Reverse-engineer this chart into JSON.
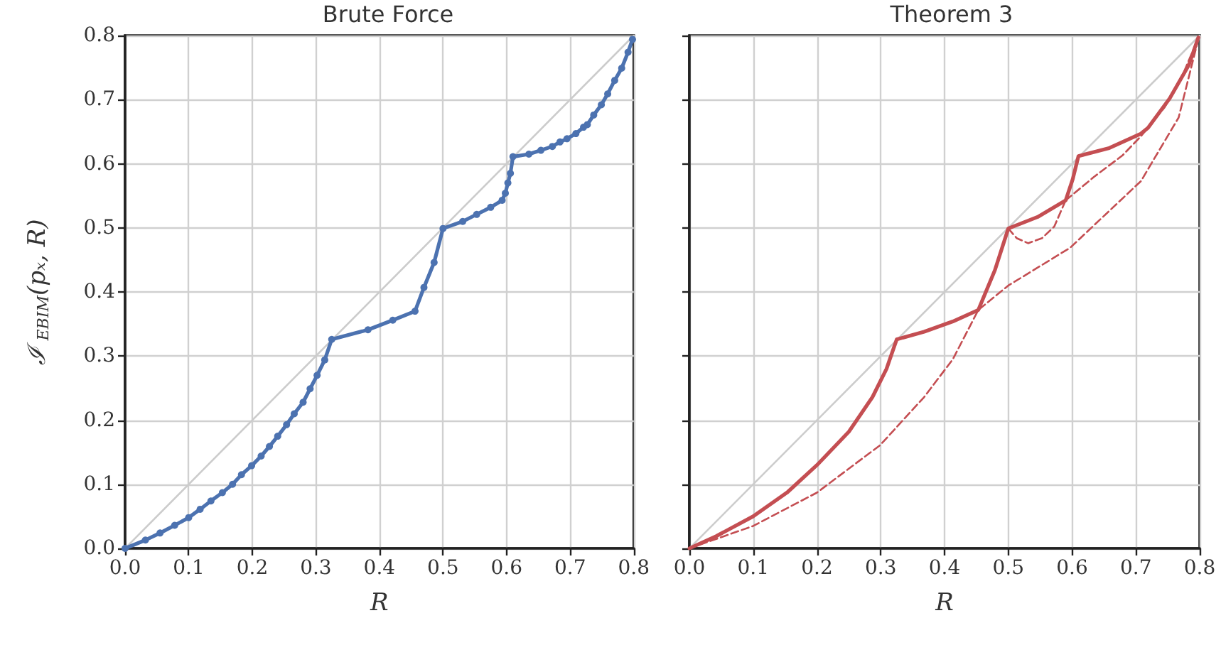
{
  "chart_data": [
    {
      "type": "line",
      "title": "Brute Force",
      "xlabel": "R",
      "ylabel": "ℐ$_{EBIM}$(pₓ, R)",
      "xlim": [
        0,
        0.8
      ],
      "ylim": [
        0,
        0.8
      ],
      "xticks": [
        {
          "value": 0,
          "label": "0.0"
        },
        0.1,
        0.2,
        0.3,
        0.4,
        0.5,
        0.6,
        0.7,
        0.8
      ],
      "yticks": [
        {
          "value": 0,
          "label": "0.0"
        },
        0.1,
        0.2,
        0.3,
        0.4,
        0.5,
        0.6,
        0.7,
        0.8
      ],
      "grid": true,
      "marker": "circle",
      "series": [
        {
          "color": "#cccccc",
          "marker": "none",
          "x": [
            0,
            0.8
          ],
          "values": [
            0,
            0.8
          ]
        },
        {
          "color": "#4c72b0",
          "x": [
            0,
            0.032,
            0.055,
            0.078,
            0.1,
            0.118,
            0.135,
            0.153,
            0.169,
            0.183,
            0.199,
            0.214,
            0.227,
            0.24,
            0.254,
            0.266,
            0.28,
            0.291,
            0.302,
            0.314,
            0.325,
            0.382,
            0.421,
            0.456,
            0.47,
            0.486,
            0.5,
            0.531,
            0.553,
            0.575,
            0.593,
            0.598,
            0.602,
            0.606,
            0.61,
            0.635,
            0.654,
            0.672,
            0.684,
            0.695,
            0.709,
            0.721,
            0.727,
            0.737,
            0.749,
            0.759,
            0.77,
            0.781,
            0.791,
            0.798
          ],
          "values": [
            0,
            0.013,
            0.024,
            0.036,
            0.048,
            0.061,
            0.074,
            0.087,
            0.1,
            0.115,
            0.129,
            0.144,
            0.159,
            0.175,
            0.193,
            0.21,
            0.228,
            0.249,
            0.27,
            0.294,
            0.326,
            0.341,
            0.356,
            0.37,
            0.407,
            0.446,
            0.499,
            0.51,
            0.521,
            0.532,
            0.543,
            0.554,
            0.57,
            0.585,
            0.611,
            0.615,
            0.621,
            0.627,
            0.634,
            0.639,
            0.647,
            0.657,
            0.661,
            0.676,
            0.692,
            0.709,
            0.73,
            0.749,
            0.774,
            0.794
          ]
        }
      ]
    },
    {
      "type": "line",
      "title": "Theorem 3",
      "xlabel": "R",
      "xlim": [
        0,
        0.8
      ],
      "ylim": [
        0,
        0.8
      ],
      "xticks": [
        {
          "value": 0,
          "label": "0.0"
        },
        0.1,
        0.2,
        0.3,
        0.4,
        0.5,
        0.6,
        0.7,
        0.8
      ],
      "yticks": [
        0,
        0.1,
        0.2,
        0.3,
        0.4,
        0.5,
        0.6,
        0.7,
        0.8
      ],
      "tick_labels": "x",
      "grid": true,
      "series": [
        {
          "color": "#cccccc",
          "x": [
            0,
            0.8
          ],
          "values": [
            0,
            0.8
          ]
        },
        {
          "color": "#c44e52",
          "line_style": "dashed",
          "x": [
            0,
            0.1,
            0.2,
            0.299,
            0.368,
            0.413,
            0.453,
            0.5,
            0.597,
            0.708,
            0.767,
            0.796
          ],
          "values": [
            0,
            0.035,
            0.087,
            0.161,
            0.236,
            0.295,
            0.372,
            0.41,
            0.469,
            0.573,
            0.672,
            0.787
          ]
        },
        {
          "color": "#c44e52",
          "line_style": "dashed",
          "x": [
            0.5,
            0.513,
            0.531,
            0.553,
            0.572,
            0.59
          ],
          "values": [
            0.499,
            0.484,
            0.476,
            0.484,
            0.502,
            0.543
          ]
        },
        {
          "color": "#c44e52",
          "line_style": "dashed",
          "x": [
            0.59,
            0.635,
            0.679,
            0.708,
            0.745,
            0.774,
            0.796
          ],
          "values": [
            0.543,
            0.58,
            0.613,
            0.643,
            0.688,
            0.74,
            0.792
          ]
        },
        {
          "color": "#c44e52",
          "x": [
            0,
            0.042,
            0.1,
            0.153,
            0.2,
            0.25,
            0.287,
            0.309,
            0.325,
            0.368,
            0.413,
            0.453,
            0.479,
            0.5,
            0.546,
            0.59,
            0.601,
            0.61,
            0.657,
            0.708,
            0.719,
            0.753,
            0.783,
            0.798
          ],
          "values": [
            0,
            0.019,
            0.05,
            0.087,
            0.13,
            0.182,
            0.236,
            0.28,
            0.326,
            0.338,
            0.354,
            0.372,
            0.434,
            0.499,
            0.517,
            0.543,
            0.576,
            0.612,
            0.624,
            0.647,
            0.656,
            0.702,
            0.754,
            0.797
          ]
        }
      ]
    }
  ]
}
